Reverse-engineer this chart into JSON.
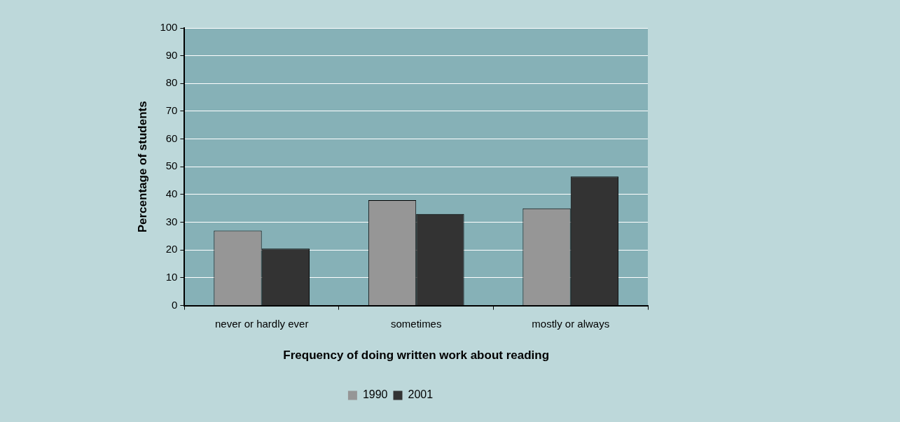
{
  "chart_data": {
    "type": "bar",
    "xlabel": "Frequency of doing written work about reading",
    "ylabel": "Percentage of students",
    "categories": [
      "never or hardly ever",
      "sometimes",
      "mostly or always"
    ],
    "series": [
      {
        "name": "1990",
        "color": "#969696",
        "values": [
          27,
          38,
          35
        ]
      },
      {
        "name": "2001",
        "color": "#333333",
        "values": [
          20.5,
          33,
          46.5
        ]
      }
    ],
    "ylim": [
      0,
      100
    ],
    "yticks": [
      0,
      10,
      20,
      30,
      40,
      50,
      60,
      70,
      80,
      90,
      100
    ],
    "grid": "y",
    "legend": "bottom"
  }
}
